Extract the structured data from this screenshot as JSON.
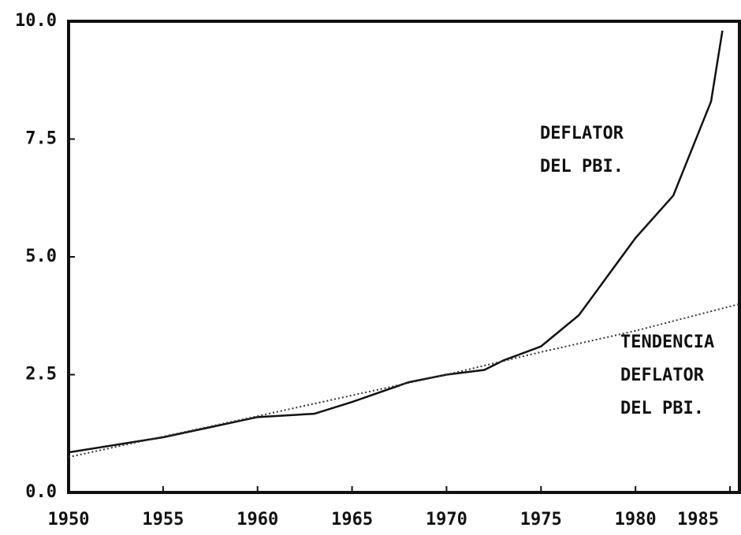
{
  "chart_data": {
    "type": "line",
    "annotations": [
      [
        "DEFLATOR",
        "DEL PBI."
      ],
      [
        "TENDENCIA",
        "DEFLATOR",
        "DEL PBI."
      ]
    ],
    "xlim": [
      1950,
      1985.5
    ],
    "xticks": [
      1950,
      1955,
      1960,
      1965,
      1970,
      1975,
      1980,
      1985
    ],
    "ylim": [
      0,
      10
    ],
    "yticks": [
      {
        "value": 0,
        "label": "0.0"
      },
      2.5,
      {
        "value": 5,
        "label": "5.0"
      },
      7.5,
      {
        "value": 10,
        "label": "10.0"
      }
    ],
    "series": [
      {
        "color": "#111111",
        "style": "solid",
        "x": [
          1950,
          1955,
          1960,
          1963,
          1965,
          1968,
          1970,
          1972,
          1973,
          1975,
          1977,
          1980,
          1982,
          1984,
          1984.6
        ],
        "values": [
          0.85,
          1.17,
          1.6,
          1.67,
          1.92,
          2.34,
          2.5,
          2.6,
          2.8,
          3.1,
          3.76,
          5.4,
          6.3,
          8.3,
          9.8
        ]
      },
      {
        "color": "#333333",
        "style": "dotted",
        "x": [
          1950,
          1960,
          1970,
          1975,
          1980,
          1985.5
        ],
        "values": [
          0.75,
          1.62,
          2.5,
          2.98,
          3.43,
          4.0
        ]
      }
    ]
  }
}
